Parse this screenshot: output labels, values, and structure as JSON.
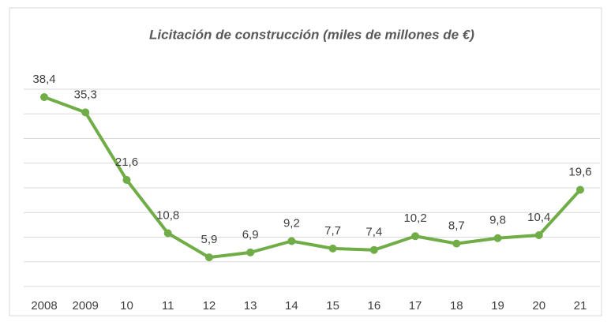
{
  "chart_data": {
    "type": "line",
    "title": "Licitación de construcción (miles de millones de €)",
    "categories": [
      "2008",
      "2009",
      "10",
      "11",
      "12",
      "13",
      "14",
      "15",
      "16",
      "17",
      "18",
      "19",
      "20",
      "21"
    ],
    "series": [
      {
        "color": "#70ad47",
        "values": [
          38.4,
          35.3,
          21.6,
          10.8,
          5.9,
          6.9,
          9.2,
          7.7,
          7.4,
          10.2,
          8.7,
          9.8,
          10.4,
          19.6
        ],
        "value_labels": [
          "38,4",
          "35,3",
          "21,6",
          "10,8",
          "5,9",
          "6,9",
          "9,2",
          "7,7",
          "7,4",
          "10,2",
          "8,7",
          "9,8",
          "10,4",
          "19,6"
        ]
      }
    ],
    "ylim": [
      0,
      40
    ],
    "yticks": [
      0,
      5,
      10,
      15,
      20,
      25,
      30,
      35,
      40
    ],
    "grid": true
  }
}
